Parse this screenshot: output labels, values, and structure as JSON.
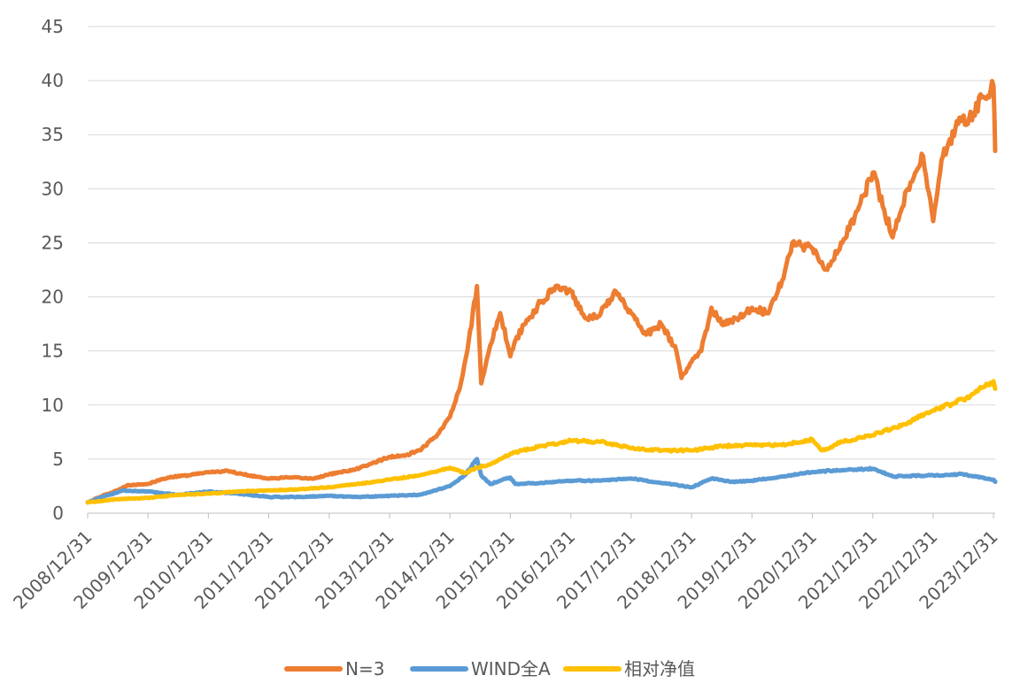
{
  "chart_data": {
    "type": "line",
    "title": "",
    "xlabel": "",
    "ylabel": "",
    "ylim": [
      0,
      45
    ],
    "y_ticks": [
      "0",
      "5",
      "10",
      "15",
      "20",
      "25",
      "30",
      "35",
      "40",
      "45"
    ],
    "x_ticks": [
      "2008/12/31",
      "2009/12/31",
      "2010/12/31",
      "2011/12/31",
      "2012/12/31",
      "2013/12/31",
      "2014/12/31",
      "2015/12/31",
      "2016/12/31",
      "2017/12/31",
      "2018/12/31",
      "2019/12/31",
      "2020/12/31",
      "2021/12/31",
      "2022/12/31",
      "2023/12/31"
    ],
    "grid": "horizontal",
    "legend_position": "bottom",
    "series": [
      {
        "name": "N=3",
        "color": "#ED7D31",
        "x": [
          "2008/12/31",
          "2009/03/31",
          "2009/06/30",
          "2009/08/31",
          "2009/12/31",
          "2010/04/30",
          "2010/08/31",
          "2010/12/31",
          "2011/04/30",
          "2011/08/31",
          "2011/12/31",
          "2012/04/30",
          "2012/09/30",
          "2012/12/31",
          "2013/05/31",
          "2013/09/30",
          "2013/12/31",
          "2014/03/31",
          "2014/06/30",
          "2014/09/30",
          "2014/12/31",
          "2015/02/28",
          "2015/04/15",
          "2015/06/12",
          "2015/07/08",
          "2015/08/31",
          "2015/10/31",
          "2015/12/31",
          "2016/01/31",
          "2016/03/31",
          "2016/06/30",
          "2016/09/30",
          "2016/12/31",
          "2017/03/31",
          "2017/06/30",
          "2017/09/30",
          "2017/12/31",
          "2018/03/31",
          "2018/06/30",
          "2018/09/30",
          "2018/10/31",
          "2018/12/31",
          "2019/02/28",
          "2019/04/30",
          "2019/06/30",
          "2019/09/30",
          "2019/12/31",
          "2020/03/31",
          "2020/06/30",
          "2020/08/31",
          "2020/12/31",
          "2021/03/31",
          "2021/06/30",
          "2021/09/30",
          "2021/12/31",
          "2022/04/30",
          "2022/07/31",
          "2022/10/31",
          "2022/12/31",
          "2023/02/28",
          "2023/05/31",
          "2023/08/31",
          "2023/10/31",
          "2023/12/31",
          "2024/01/10"
        ],
        "y": [
          1.0,
          1.6,
          2.1,
          2.6,
          2.7,
          3.3,
          3.5,
          3.8,
          3.9,
          3.5,
          3.2,
          3.3,
          3.2,
          3.6,
          4.0,
          4.7,
          5.2,
          5.3,
          5.8,
          7.0,
          8.9,
          11.5,
          15.0,
          21.0,
          12.0,
          15.5,
          18.5,
          14.5,
          16.0,
          17.5,
          19.5,
          21.0,
          20.5,
          18.0,
          18.5,
          20.5,
          18.5,
          16.5,
          17.5,
          15.0,
          12.5,
          14.0,
          15.0,
          19.0,
          17.5,
          18.0,
          19.0,
          18.5,
          21.5,
          25.0,
          24.5,
          22.5,
          25.0,
          28.0,
          31.5,
          25.5,
          30.0,
          33.0,
          27.0,
          33.0,
          36.0,
          37.0,
          38.5,
          39.5,
          33.5
        ]
      },
      {
        "name": "WIND全A",
        "color": "#5B9BD5",
        "x": [
          "2008/12/31",
          "2009/03/31",
          "2009/08/04",
          "2009/12/31",
          "2010/06/30",
          "2010/12/31",
          "2011/06/30",
          "2011/12/31",
          "2012/06/30",
          "2012/12/31",
          "2013/06/30",
          "2013/12/31",
          "2014/06/30",
          "2014/12/31",
          "2015/03/31",
          "2015/06/12",
          "2015/07/08",
          "2015/08/31",
          "2015/12/31",
          "2016/01/31",
          "2016/06/30",
          "2016/12/31",
          "2017/06/30",
          "2017/12/31",
          "2018/06/30",
          "2018/12/31",
          "2019/04/30",
          "2019/08/31",
          "2019/12/31",
          "2020/06/30",
          "2020/12/31",
          "2021/06/30",
          "2021/12/31",
          "2022/04/30",
          "2022/12/31",
          "2023/06/30",
          "2023/12/31",
          "2024/01/10"
        ],
        "y": [
          1.0,
          1.5,
          2.1,
          2.0,
          1.7,
          2.0,
          1.8,
          1.5,
          1.5,
          1.6,
          1.5,
          1.6,
          1.7,
          2.5,
          3.5,
          5.0,
          3.5,
          2.7,
          3.3,
          2.7,
          2.8,
          3.0,
          3.0,
          3.2,
          2.8,
          2.4,
          3.2,
          2.9,
          3.0,
          3.4,
          3.8,
          4.0,
          4.1,
          3.4,
          3.5,
          3.6,
          3.1,
          2.9
        ]
      },
      {
        "name": "相对净值",
        "color": "#FFC000",
        "x": [
          "2008/12/31",
          "2009/06/30",
          "2009/12/31",
          "2010/06/30",
          "2010/12/31",
          "2011/06/30",
          "2011/12/31",
          "2012/06/30",
          "2012/12/31",
          "2013/06/30",
          "2013/12/31",
          "2014/06/30",
          "2014/12/31",
          "2015/03/31",
          "2015/06/12",
          "2015/08/31",
          "2015/12/31",
          "2016/06/30",
          "2016/12/31",
          "2017/06/30",
          "2017/12/31",
          "2018/06/30",
          "2018/12/31",
          "2019/06/30",
          "2019/12/31",
          "2020/06/30",
          "2020/12/31",
          "2021/02/28",
          "2021/06/30",
          "2021/12/31",
          "2022/06/30",
          "2022/12/31",
          "2023/06/30",
          "2023/12/31",
          "2024/01/10"
        ],
        "y": [
          1.0,
          1.3,
          1.4,
          1.7,
          1.8,
          2.0,
          2.1,
          2.2,
          2.4,
          2.7,
          3.1,
          3.5,
          4.2,
          3.7,
          4.2,
          4.5,
          5.5,
          6.2,
          6.7,
          6.6,
          6.0,
          5.8,
          5.8,
          6.2,
          6.3,
          6.3,
          6.8,
          5.8,
          6.6,
          7.2,
          8.2,
          9.5,
          10.5,
          12.2,
          11.5
        ]
      }
    ]
  }
}
